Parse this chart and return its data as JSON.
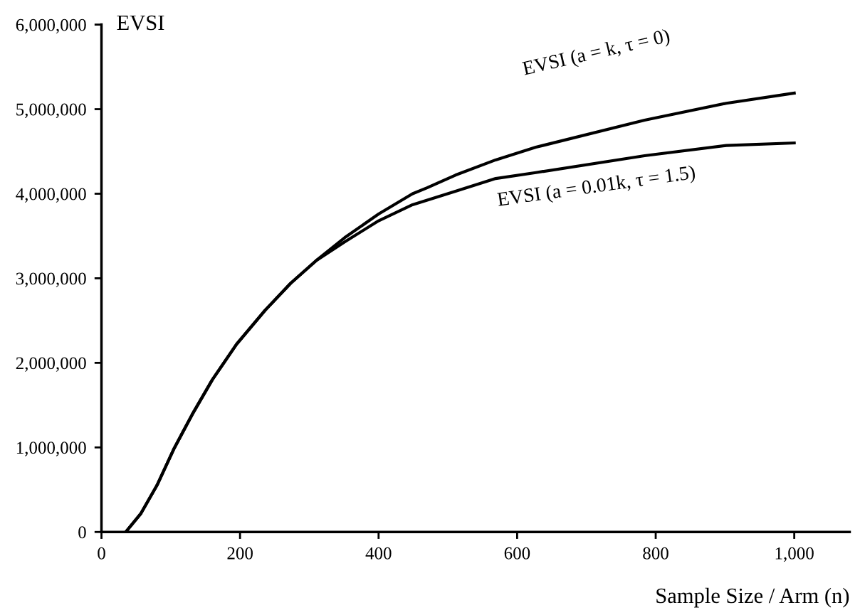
{
  "chart_data": {
    "type": "line",
    "xlabel": "Sample Size / Arm (n)",
    "ylabel": "EVSI",
    "xlim": [
      0,
      1080
    ],
    "xticks": [
      0,
      200,
      400,
      {
        "value": 600,
        "label": "600"
      },
      800,
      {
        "value": 1000,
        "label": "1,000"
      }
    ],
    "ylim": [
      0,
      6000000
    ],
    "yticks": [
      {
        "value": 0,
        "label": "0"
      },
      {
        "value": 1000000,
        "label": "1,000,000"
      },
      {
        "value": 2000000,
        "label": "2,000,000"
      },
      {
        "value": 3000000,
        "label": "3,000,000"
      },
      {
        "value": 4000000,
        "label": "4,000,000"
      },
      {
        "value": 5000000,
        "label": "5,000,000"
      },
      {
        "value": 6000000,
        "label": "6,000,000"
      }
    ],
    "grid": false,
    "legend": false,
    "marker": "none",
    "line_style": "solid",
    "series": [
      {
        "name": "EVSI (a = k, τ = 0)",
        "color": "#000000",
        "x": [
          35,
          57,
          80,
          105,
          131,
          160,
          195,
          236,
          273,
          310,
          351,
          400,
          449,
          470,
          511,
          569,
          627,
          784,
          902,
          1000
        ],
        "values": [
          0,
          220000,
          550000,
          990000,
          1390000,
          1800000,
          2220000,
          2620000,
          2940000,
          3210000,
          3480000,
          3760000,
          4000000,
          4070000,
          4220000,
          4400000,
          4550000,
          4870000,
          5070000,
          5190000
        ]
      },
      {
        "name": "EVSI (a = 0.01k, τ = 1.5)",
        "color": "#000000",
        "x": [
          35,
          57,
          80,
          105,
          131,
          160,
          195,
          236,
          273,
          310,
          351,
          400,
          449,
          511,
          569,
          627,
          784,
          902,
          1000
        ],
        "values": [
          0,
          220000,
          550000,
          990000,
          1390000,
          1800000,
          2220000,
          2620000,
          2940000,
          3210000,
          3430000,
          3680000,
          3870000,
          4030000,
          4180000,
          4250000,
          4450000,
          4570000,
          4600000
        ]
      }
    ]
  }
}
